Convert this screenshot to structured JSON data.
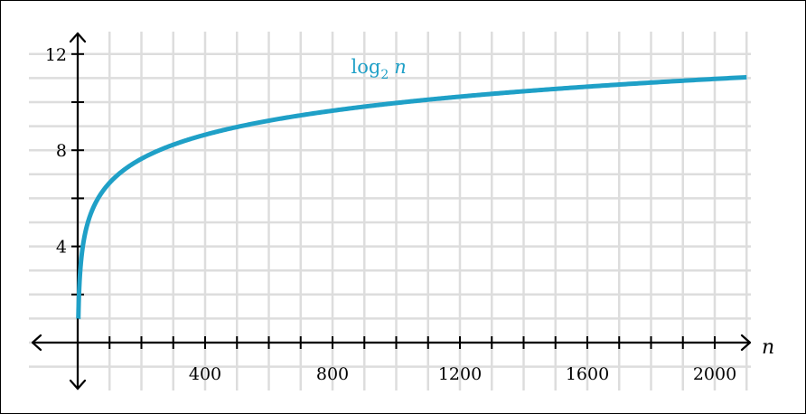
{
  "chart_data": {
    "type": "line",
    "xlabel": "n",
    "ylabel": "",
    "xlim": [
      -70,
      2100
    ],
    "ylim": [
      -2,
      13
    ],
    "grid": true,
    "grid_step_x": 100,
    "grid_step_y": 1,
    "x_ticks": [
      100,
      200,
      300,
      400,
      500,
      600,
      700,
      800,
      900,
      1000,
      1100,
      1200,
      1300,
      1400,
      1500,
      1600,
      1700,
      1800,
      1900,
      2000
    ],
    "x_tick_labels": [
      {
        "value": 400,
        "text": "400"
      },
      {
        "value": 800,
        "text": "800"
      },
      {
        "value": 1200,
        "text": "1200"
      },
      {
        "value": 1600,
        "text": "1600"
      },
      {
        "value": 2000,
        "text": "2000"
      }
    ],
    "y_ticks": [
      2,
      4,
      6,
      8,
      10,
      12
    ],
    "y_tick_labels": [
      {
        "value": 4,
        "text": "4"
      },
      {
        "value": 8,
        "text": "8"
      },
      {
        "value": 12,
        "text": "12"
      }
    ],
    "series": [
      {
        "name": "log",
        "subscript": "2",
        "variable": "n",
        "function": "log2",
        "x_start": 2,
        "x_end": 2100,
        "color": "#1fa0c7",
        "sample_points": [
          {
            "x": 2,
            "y": 1
          },
          {
            "x": 16,
            "y": 4
          },
          {
            "x": 128,
            "y": 7
          },
          {
            "x": 256,
            "y": 8
          },
          {
            "x": 512,
            "y": 9
          },
          {
            "x": 1024,
            "y": 10
          },
          {
            "x": 2048,
            "y": 11
          }
        ]
      }
    ],
    "annotation": {
      "x": 1000,
      "y": 11.2
    }
  },
  "colors": {
    "grid": "#dddddd",
    "axis": "#000000",
    "curve": "#1fa0c7"
  }
}
